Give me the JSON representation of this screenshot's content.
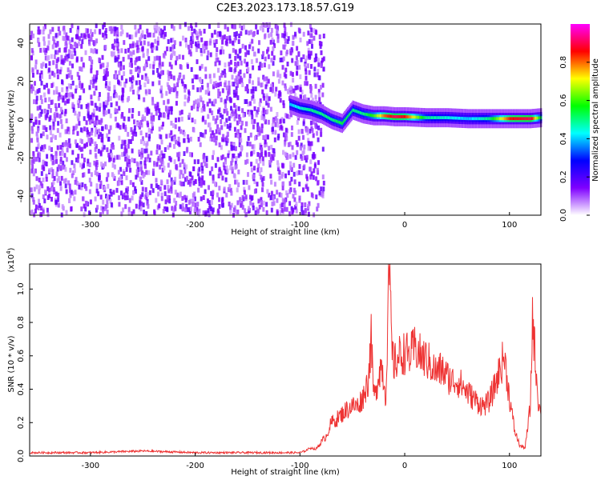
{
  "title": "C2E3.2023.173.18.57.G19",
  "chart_data": [
    {
      "type": "heatmap",
      "name": "spectrogram",
      "xlabel": "Height of straight line (km)",
      "ylabel": "Frequency (Hz)",
      "xlim": [
        -358,
        130
      ],
      "ylim": [
        -50,
        50
      ],
      "xticks": [
        -300,
        -200,
        -100,
        0,
        100
      ],
      "yticks": [
        -40,
        -20,
        0,
        20,
        40
      ],
      "colorbar": {
        "label": "Normalized spectral amplitude",
        "range": [
          0.0,
          1.0
        ],
        "ticks": [
          "0.0",
          "0.2",
          "0.4",
          "0.6",
          "0.8"
        ],
        "colormap": [
          "#ffffff",
          "#7f00ff",
          "#0000ff",
          "#00ffff",
          "#00ff00",
          "#ffff00",
          "#ff0000",
          "#ff00ff"
        ]
      },
      "noise_region_x": [
        -358,
        -78
      ],
      "signal_track": {
        "x": [
          -110,
          -100,
          -90,
          -80,
          -70,
          -60,
          -50,
          -40,
          -30,
          -20,
          -10,
          0,
          20,
          40,
          60,
          80,
          100,
          120,
          130
        ],
        "freq": [
          8,
          6,
          5,
          3,
          0,
          -2,
          5,
          3,
          2,
          2,
          1.5,
          1.5,
          1,
          1,
          0.5,
          0.5,
          0.5,
          0.5,
          1
        ],
        "peak_amplitude": [
          0.4,
          0.45,
          0.5,
          0.5,
          0.5,
          0.55,
          0.5,
          0.5,
          0.6,
          0.8,
          0.9,
          0.85,
          0.5,
          0.45,
          0.4,
          0.5,
          0.85,
          0.9,
          0.5
        ]
      }
    },
    {
      "type": "line",
      "name": "snr",
      "xlabel": "Height of straight line (km)",
      "ylabel": "SNR (10 * v/v)",
      "scale_note_base": "(x10",
      "scale_note_exp": "4",
      "scale_note_end": ")",
      "xlim": [
        -358,
        130
      ],
      "ylim": [
        0,
        1.15
      ],
      "xticks": [
        -300,
        -200,
        -100,
        0,
        100
      ],
      "yticks": [
        0.0,
        0.2,
        0.4,
        0.6,
        0.8,
        1.0
      ],
      "color": "#ee3333",
      "series": [
        {
          "x": [
            -358,
            -300,
            -250,
            -200,
            -150,
            -110,
            -100,
            -95,
            -90,
            -85,
            -80,
            -75,
            -70,
            -65,
            -60,
            -55,
            -50,
            -45,
            -40,
            -35,
            -32,
            -30,
            -28,
            -25,
            -22,
            -20,
            -18,
            -15,
            -12,
            -10,
            -5,
            0,
            5,
            10,
            15,
            20,
            25,
            30,
            35,
            40,
            45,
            50,
            55,
            60,
            65,
            70,
            75,
            80,
            85,
            90,
            95,
            100,
            105,
            110,
            115,
            118,
            120,
            122,
            125,
            128,
            130
          ],
          "y": [
            0.02,
            0.02,
            0.03,
            0.02,
            0.02,
            0.02,
            0.02,
            0.03,
            0.05,
            0.04,
            0.08,
            0.12,
            0.2,
            0.22,
            0.25,
            0.28,
            0.3,
            0.3,
            0.35,
            0.45,
            0.7,
            0.4,
            0.35,
            0.5,
            0.55,
            0.45,
            0.35,
            1.15,
            0.6,
            0.55,
            0.6,
            0.62,
            0.6,
            0.65,
            0.6,
            0.58,
            0.55,
            0.5,
            0.52,
            0.48,
            0.45,
            0.45,
            0.42,
            0.38,
            0.35,
            0.32,
            0.3,
            0.32,
            0.4,
            0.5,
            0.6,
            0.35,
            0.15,
            0.06,
            0.05,
            0.2,
            0.3,
            0.85,
            0.55,
            0.3,
            0.25
          ]
        }
      ]
    }
  ]
}
